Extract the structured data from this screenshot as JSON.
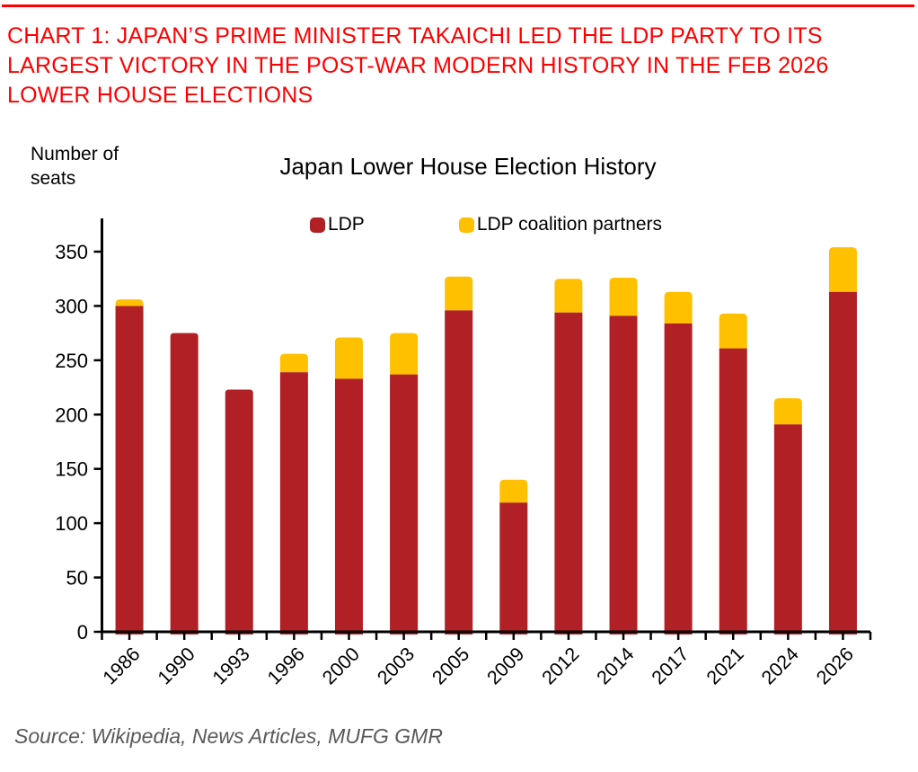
{
  "header": {
    "title": "CHART 1: JAPAN’S PRIME MINISTER TAKAICHI LED THE LDP PARTY TO ITS LARGEST VICTORY IN THE POST-WAR MODERN HISTORY IN THE FEB 2026 LOWER HOUSE ELECTIONS"
  },
  "colors": {
    "accent_red": "#FE0000",
    "bar_ldp": "#B02024",
    "bar_partners": "#FFC000",
    "axis": "#000000",
    "source_gray": "#595959"
  },
  "chart_data": {
    "type": "bar",
    "stacked": true,
    "title": "Japan Lower House Election History",
    "ylabel": "Number of seats",
    "xlabel": "",
    "grid": false,
    "legend_position": "top-center",
    "ylim": [
      0,
      368
    ],
    "yticks": [
      0,
      50,
      100,
      150,
      200,
      250,
      300,
      350
    ],
    "categories": [
      "1986",
      "1990",
      "1993",
      "1996",
      "2000",
      "2003",
      "2005",
      "2009",
      "2012",
      "2014",
      "2017",
      "2021",
      "2024",
      "2026"
    ],
    "series": [
      {
        "name": "LDP",
        "color": "#B02024",
        "values": [
          300,
          275,
          223,
          239,
          233,
          237,
          296,
          119,
          294,
          291,
          284,
          261,
          191,
          313
        ]
      },
      {
        "name": "LDP coalition partners",
        "color": "#FFC000",
        "values": [
          6,
          0,
          0,
          17,
          38,
          38,
          31,
          21,
          31,
          35,
          29,
          32,
          24,
          41
        ]
      }
    ],
    "totals": [
      306,
      275,
      223,
      256,
      271,
      275,
      327,
      140,
      325,
      326,
      313,
      293,
      215,
      354
    ]
  },
  "source": "Source: Wikipedia, News Articles, MUFG GMR"
}
